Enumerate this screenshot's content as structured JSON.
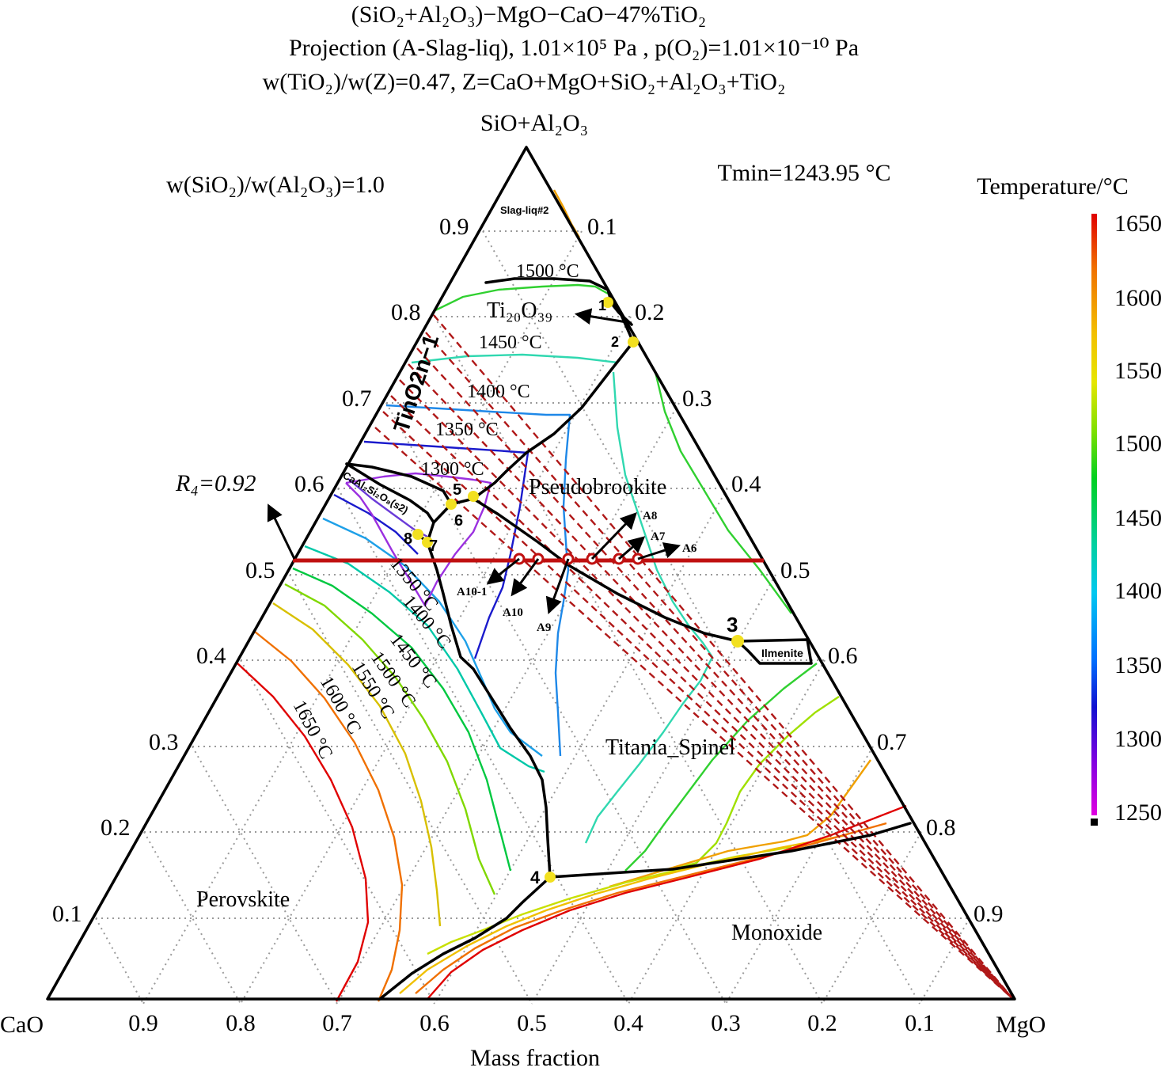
{
  "header": {
    "line1": "(SiO₂+Al₂O₃)−MgO−CaO−47%TiO₂",
    "line2": "Projection (A-Slag-liq), 1.01×10⁵ Pa , p(O₂)=1.01×10⁻¹⁰ Pa",
    "line3": "w(TiO₂)/w(Z)=0.47, Z=CaO+MgO+SiO₂+Al₂O₃+TiO₂"
  },
  "diagram": {
    "apex_top": "SiO+Al₂O₃",
    "apex_left": "CaO",
    "apex_right": "MgO",
    "ratio_note": "w(SiO₂)/w(Al₂O₃)=1.0",
    "tmin": "Tmin=1243.95 °C",
    "bottom_axis_title": "Mass fraction",
    "r4_label": "R₄=0.92",
    "left_ticks": [
      "0.9",
      "0.8",
      "0.7",
      "0.6",
      "0.5",
      "0.4",
      "0.3",
      "0.2",
      "0.1"
    ],
    "right_ticks": [
      "0.1",
      "0.2",
      "0.3",
      "0.4",
      "0.5",
      "0.6",
      "0.7",
      "0.8",
      "0.9"
    ],
    "bottom_ticks": [
      "0.9",
      "0.8",
      "0.7",
      "0.6",
      "0.5",
      "0.4",
      "0.3",
      "0.2",
      "0.1"
    ],
    "phase_regions": {
      "slag_liq2": "Slag-liq#2",
      "ti20o39": "Ti₂₀O₃₉",
      "tin_o2n1": "TinO2n−1",
      "caal2si2o8": "CaAl₂Si₂O₈(s2)",
      "pseudobrookite": "Pseudobrookite",
      "ilmenite": "Ilmenite",
      "titania_spinel": "Titania_Spinel",
      "perovskite": "Perovskite",
      "monoxide": "Monoxide"
    },
    "isotherm_labels": {
      "t1500_top": "1500 °C",
      "t1450_top": "1450 °C",
      "t1400_top": "1400 °C",
      "t1350_top": "1350 °C",
      "t1300_top": "1300 °C",
      "t1350_left": "1350 °C",
      "t1400_left": "1400 °C",
      "t1450_left": "1450 °C",
      "t1500_left": "1500 °C",
      "t1550_left": "1550 °C",
      "t1600_left": "1600 °C",
      "t1650_left": "1650 °C"
    },
    "invariant_points": [
      "1",
      "2",
      "3",
      "4",
      "5",
      "6",
      "7",
      "8"
    ],
    "composition_paths": {
      "A6": "A6",
      "A7": "A7",
      "A8": "A8",
      "A9": "A9",
      "A10": "A10",
      "A10_1": "A10-1"
    }
  },
  "colorbar": {
    "title": "Temperature/°C",
    "ticks": [
      "1650",
      "1600",
      "1550",
      "1500",
      "1450",
      "1400",
      "1350",
      "1300",
      "1250"
    ],
    "gradient_colors": [
      "#e00000",
      "#f07000",
      "#f2c000",
      "#e6e600",
      "#80e000",
      "#00d020",
      "#00d0a0",
      "#00c8f0",
      "#0070ff",
      "#1010d0",
      "#8000e0",
      "#e000e0"
    ]
  }
}
